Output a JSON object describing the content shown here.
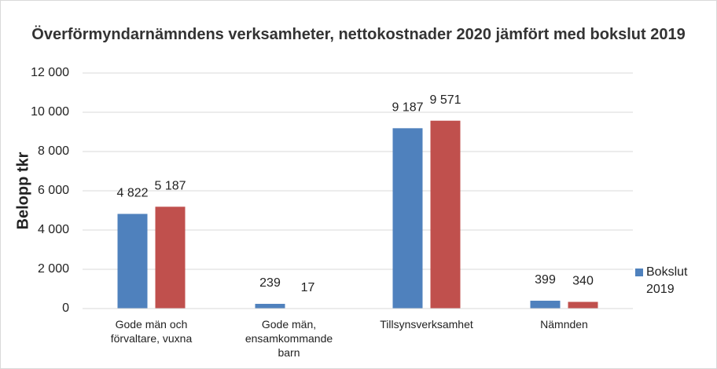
{
  "chart_data": {
    "type": "bar",
    "title": "Överförmyndarnämndens verksamheter, nettokostnader 2020 jämfört med bokslut 2019",
    "y_label": "Belopp tkr",
    "categories": [
      "Gode män och förvaltare, vuxna",
      "Gode män, ensamkommande barn",
      "Tillsynsverksamhet",
      "Nämnden"
    ],
    "series": [
      {
        "name": "Bokslut 2019",
        "color": "#4f81bd",
        "values": [
          4822,
          239,
          9187,
          399
        ],
        "value_labels": [
          "4 822",
          "239",
          "9 187",
          "399"
        ]
      },
      {
        "color": "#c0504d",
        "values": [
          5187,
          17,
          9571,
          340
        ],
        "value_labels": [
          "5 187",
          "17",
          "9 571",
          "340"
        ]
      }
    ],
    "ylim": [
      0,
      12000
    ],
    "yticks": [
      0,
      {
        "value": 2000,
        "label": "2 000"
      },
      {
        "value": 4000,
        "label": "4 000"
      },
      {
        "value": 6000,
        "label": "6 000"
      },
      {
        "value": 8000,
        "label": "8 000"
      },
      {
        "value": 10000,
        "label": "10 000"
      },
      {
        "value": 12000,
        "label": "12 000"
      }
    ],
    "grid": true,
    "legend": "right"
  }
}
